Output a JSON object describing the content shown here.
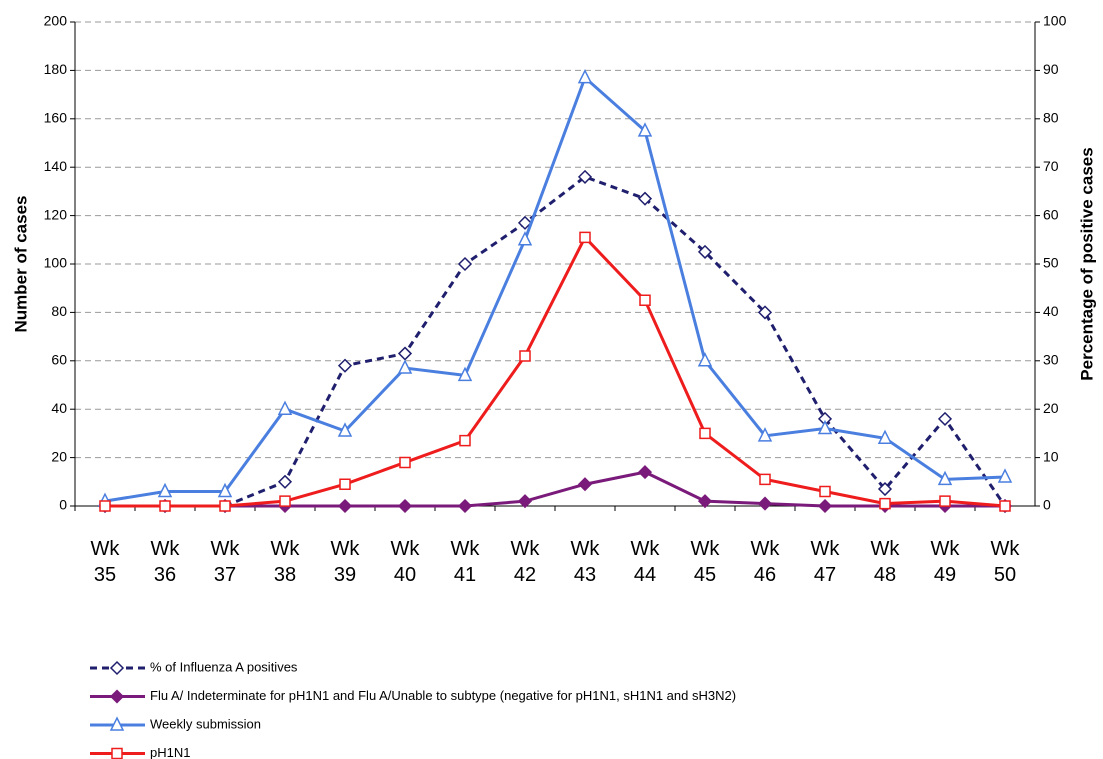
{
  "chart_data": {
    "type": "line",
    "y_label": "Number of cases",
    "y2_label": "Percentage of positive cases",
    "categories": [
      "Wk 35",
      "Wk 36",
      "Wk 37",
      "Wk 38",
      "Wk 39",
      "Wk 40",
      "Wk 41",
      "Wk 42",
      "Wk 43",
      "Wk 44",
      "Wk 45",
      "Wk 46",
      "Wk 47",
      "Wk 48",
      "Wk 49",
      "Wk 50"
    ],
    "series": [
      {
        "name": "% of Influenza A  positives",
        "color": "#1f1f6e",
        "axis": "y2",
        "dashed": true,
        "marker": "diamond-open",
        "values": [
          0,
          0,
          0,
          5,
          29,
          31.5,
          50,
          58.5,
          68,
          63.5,
          52.5,
          40,
          18,
          3.5,
          18,
          0
        ]
      },
      {
        "name": "Flu A/ Indeterminate for pH1N1 and Flu A/Unable to subtype (negative for pH1N1, sH1N1 and sH3N2)",
        "color": "#7a1a7a",
        "marker": "diamond",
        "values": [
          0,
          0,
          0,
          0,
          0,
          0,
          0,
          2,
          9,
          14,
          2,
          1,
          0,
          0,
          0,
          0
        ]
      },
      {
        "name": "Weekly submission",
        "color": "#4a7fe0",
        "marker": "triangle-open",
        "values": [
          2,
          6,
          6,
          40,
          31,
          57,
          54,
          110,
          177,
          155,
          60,
          29,
          32,
          28,
          11,
          12
        ]
      },
      {
        "name": "pH1N1",
        "color": "#ee1c1c",
        "marker": "square-open",
        "values": [
          0,
          0,
          0,
          2,
          9,
          18,
          27,
          62,
          111,
          85,
          30,
          11,
          6,
          1,
          2,
          0
        ]
      }
    ],
    "ylim": [
      0,
      200
    ],
    "yticks": [
      0,
      20,
      40,
      60,
      80,
      100,
      120,
      140,
      160,
      180,
      200
    ],
    "y2lim": [
      0,
      100
    ],
    "y2ticks": [
      0,
      10,
      20,
      30,
      40,
      50,
      60,
      70,
      80,
      90,
      100
    ],
    "grid": true
  }
}
